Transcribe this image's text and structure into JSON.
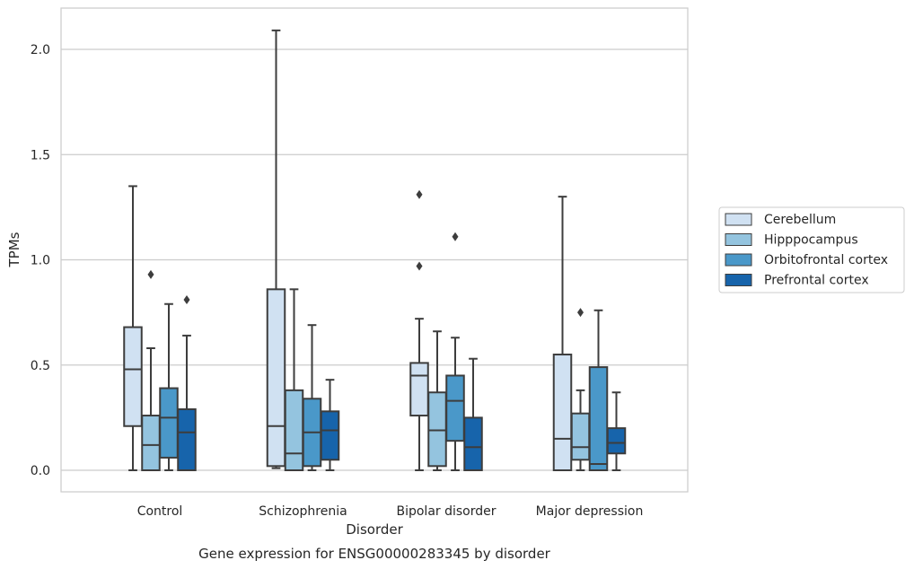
{
  "chart_data": {
    "type": "box",
    "title": "",
    "caption": "Gene expression for ENSG00000283345 by disorder",
    "xlabel": "Disorder",
    "ylabel": "TPMs",
    "ylim": [
      -0.1,
      2.2
    ],
    "yticks": [
      0.0,
      0.5,
      1.0,
      1.5,
      2.0
    ],
    "ytick_labels": [
      "0.0",
      "0.5",
      "1.0",
      "1.5",
      "2.0"
    ],
    "grid": true,
    "legend_position": "right",
    "categories": [
      "Control",
      "Schizophrenia",
      "Bipolar disorder",
      "Major depression"
    ],
    "series": [
      {
        "name": "Cerebellum",
        "color": "#d0e1f2",
        "boxes": [
          {
            "whislo": 0.0,
            "q1": 0.21,
            "med": 0.48,
            "q3": 0.68,
            "whishi": 1.35,
            "fliers": []
          },
          {
            "whislo": 0.01,
            "q1": 0.02,
            "med": 0.21,
            "q3": 0.86,
            "whishi": 2.09,
            "fliers": []
          },
          {
            "whislo": 0.0,
            "q1": 0.26,
            "med": 0.45,
            "q3": 0.51,
            "whishi": 0.72,
            "fliers": [
              0.97,
              1.31
            ]
          },
          {
            "whislo": 0.0,
            "q1": 0.0,
            "med": 0.15,
            "q3": 0.55,
            "whishi": 1.3,
            "fliers": []
          }
        ]
      },
      {
        "name": "Hipppocampus",
        "color": "#94c4df",
        "boxes": [
          {
            "whislo": 0.0,
            "q1": 0.0,
            "med": 0.12,
            "q3": 0.26,
            "whishi": 0.58,
            "fliers": [
              0.93
            ]
          },
          {
            "whislo": 0.0,
            "q1": 0.0,
            "med": 0.08,
            "q3": 0.38,
            "whishi": 0.86,
            "fliers": []
          },
          {
            "whislo": 0.0,
            "q1": 0.02,
            "med": 0.19,
            "q3": 0.37,
            "whishi": 0.66,
            "fliers": []
          },
          {
            "whislo": 0.0,
            "q1": 0.05,
            "med": 0.11,
            "q3": 0.27,
            "whishi": 0.38,
            "fliers": [
              0.75
            ]
          }
        ]
      },
      {
        "name": "Orbitofrontal cortex",
        "color": "#4a98c9",
        "boxes": [
          {
            "whislo": 0.0,
            "q1": 0.06,
            "med": 0.25,
            "q3": 0.39,
            "whishi": 0.79,
            "fliers": []
          },
          {
            "whislo": 0.0,
            "q1": 0.02,
            "med": 0.18,
            "q3": 0.34,
            "whishi": 0.69,
            "fliers": []
          },
          {
            "whislo": 0.0,
            "q1": 0.14,
            "med": 0.33,
            "q3": 0.45,
            "whishi": 0.63,
            "fliers": [
              1.11
            ]
          },
          {
            "whislo": 0.0,
            "q1": 0.0,
            "med": 0.03,
            "q3": 0.49,
            "whishi": 0.76,
            "fliers": []
          }
        ]
      },
      {
        "name": "Prefrontal cortex",
        "color": "#1764ab",
        "boxes": [
          {
            "whislo": 0.0,
            "q1": 0.0,
            "med": 0.18,
            "q3": 0.29,
            "whishi": 0.64,
            "fliers": [
              0.81
            ]
          },
          {
            "whislo": 0.0,
            "q1": 0.05,
            "med": 0.19,
            "q3": 0.28,
            "whishi": 0.43,
            "fliers": []
          },
          {
            "whislo": 0.0,
            "q1": 0.0,
            "med": 0.11,
            "q3": 0.25,
            "whishi": 0.53,
            "fliers": []
          },
          {
            "whislo": 0.0,
            "q1": 0.08,
            "med": 0.13,
            "q3": 0.2,
            "whishi": 0.37,
            "fliers": []
          }
        ]
      }
    ]
  }
}
